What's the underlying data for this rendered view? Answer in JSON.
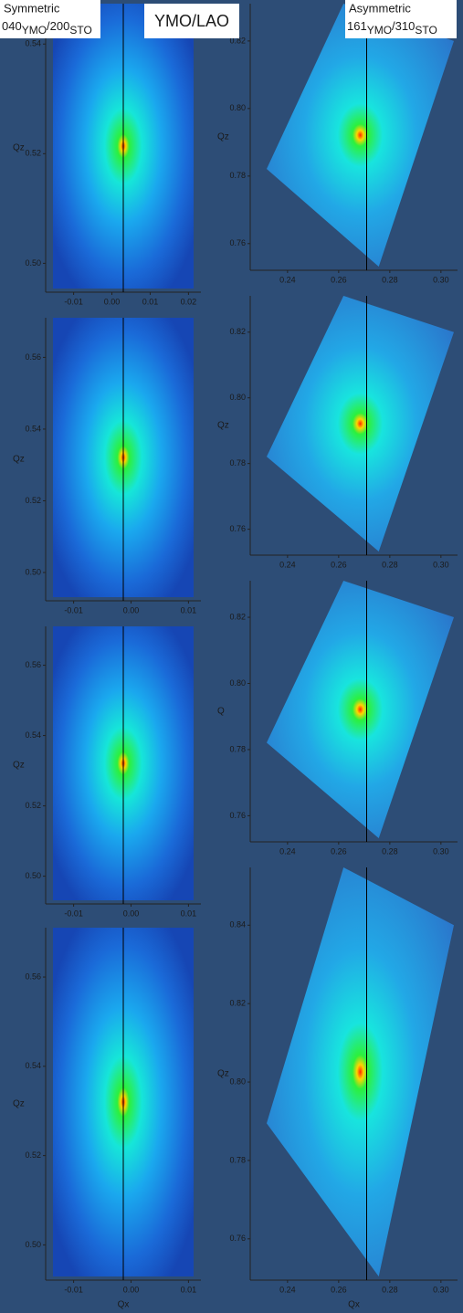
{
  "header": {
    "left_title": "Symmetric",
    "left_reflection": "040",
    "left_sub1": "YMO",
    "left_mid": "/200",
    "left_sub2": "STO",
    "center": "YMO/LAO",
    "right_title": "Asymmetric",
    "right_reflection": "161",
    "right_sub1": "YMO",
    "right_mid": "/310",
    "right_sub2": "STO"
  },
  "left_panels": [
    {
      "y_label": "Qz",
      "yticks": [
        "0.54",
        "0.52",
        "0.50"
      ],
      "xticks": [
        "-0.01",
        "0.00",
        "0.01",
        "0.02"
      ]
    },
    {
      "y_label": "Qz",
      "yticks": [
        "0.56",
        "0.54",
        "0.52",
        "0.50"
      ],
      "xticks": [
        "-0.01",
        "0.00",
        "0.01"
      ]
    },
    {
      "y_label": "Qz",
      "yticks": [
        "0.56",
        "0.54",
        "0.52",
        "0.50"
      ],
      "xticks": [
        "-0.01",
        "0.00",
        "0.01"
      ]
    },
    {
      "y_label": "Qz",
      "yticks": [
        "0.56",
        "0.54",
        "0.52",
        "0.50"
      ],
      "xticks": [
        "-0.01",
        "0.00",
        "0.01"
      ],
      "x_label": "Qx"
    }
  ],
  "right_panels": [
    {
      "y_label": "Qz",
      "yticks": [
        "0.82",
        "0.80",
        "0.78",
        "0.76"
      ],
      "xticks": [
        "0.24",
        "0.26",
        "0.28",
        "0.30"
      ]
    },
    {
      "y_label": "Qz",
      "yticks": [
        "0.82",
        "0.80",
        "0.78",
        "0.76"
      ],
      "xticks": [
        "0.24",
        "0.26",
        "0.28",
        "0.30"
      ]
    },
    {
      "y_label": "Q",
      "yticks": [
        "0.82",
        "0.80",
        "0.78",
        "0.76"
      ],
      "xticks": [
        "0.24",
        "0.26",
        "0.28",
        "0.30"
      ]
    },
    {
      "y_label": "Qz",
      "yticks": [
        "0.84",
        "0.82",
        "0.80",
        "0.78",
        "0.76"
      ],
      "xticks": [
        "0.24",
        "0.26",
        "0.28",
        "0.30"
      ],
      "x_label": "Qx"
    }
  ]
}
